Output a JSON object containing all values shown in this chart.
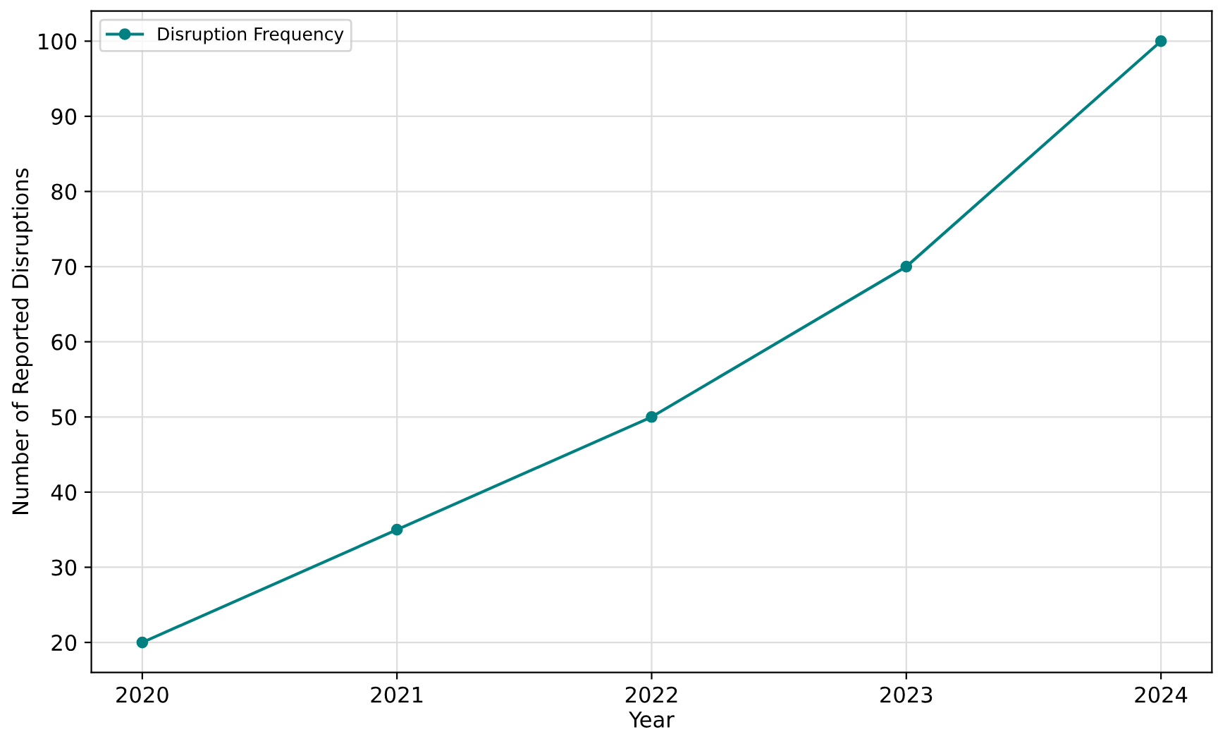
{
  "chart_data": {
    "type": "line",
    "xlabel": "Year",
    "ylabel": "Number of Reported Disruptions",
    "x": [
      2020,
      2021,
      2022,
      2023,
      2024
    ],
    "series": [
      {
        "name": "Disruption Frequency",
        "color": "#008080",
        "values": [
          20,
          35,
          50,
          70,
          100
        ]
      }
    ],
    "xlim": [
      2019.8,
      2024.2
    ],
    "xticks": [
      2020,
      2021,
      2022,
      2023,
      2024
    ],
    "ylim": [
      16,
      104
    ],
    "yticks": [
      20,
      30,
      40,
      50,
      60,
      70,
      80,
      90,
      100
    ],
    "grid": true,
    "legend": "top left",
    "marker": "circle",
    "line_style": "solid"
  }
}
